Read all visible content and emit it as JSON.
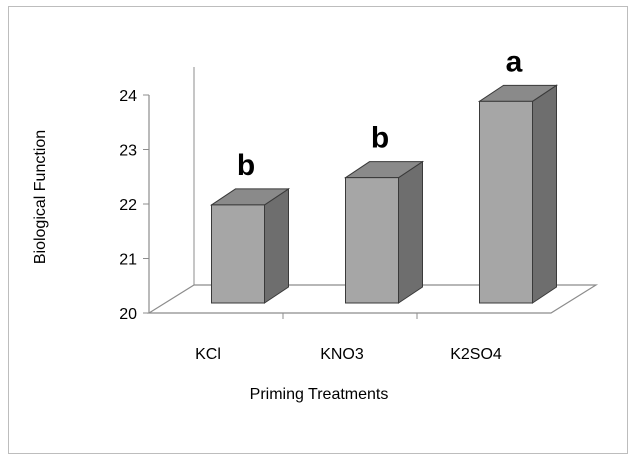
{
  "chart_data": {
    "type": "bar",
    "style": "3d-column",
    "categories": [
      "KCl",
      "KNO3",
      "K2SO4"
    ],
    "values": [
      21.8,
      22.3,
      23.7
    ],
    "significance_letters": [
      "b",
      "b",
      "a"
    ],
    "title": "",
    "xlabel": "Priming Treatments",
    "ylabel": "Biological Function",
    "ylim": [
      20,
      24
    ],
    "yticks": [
      20,
      21,
      22,
      23,
      24
    ],
    "grid": false,
    "legend": "none",
    "colors": {
      "bar_front": "#a6a6a6",
      "bar_side": "#6e6e6e",
      "bar_top": "#8a8a8a",
      "bar_outline": "#3a3a3a",
      "axis": "#8c8c8c"
    }
  }
}
